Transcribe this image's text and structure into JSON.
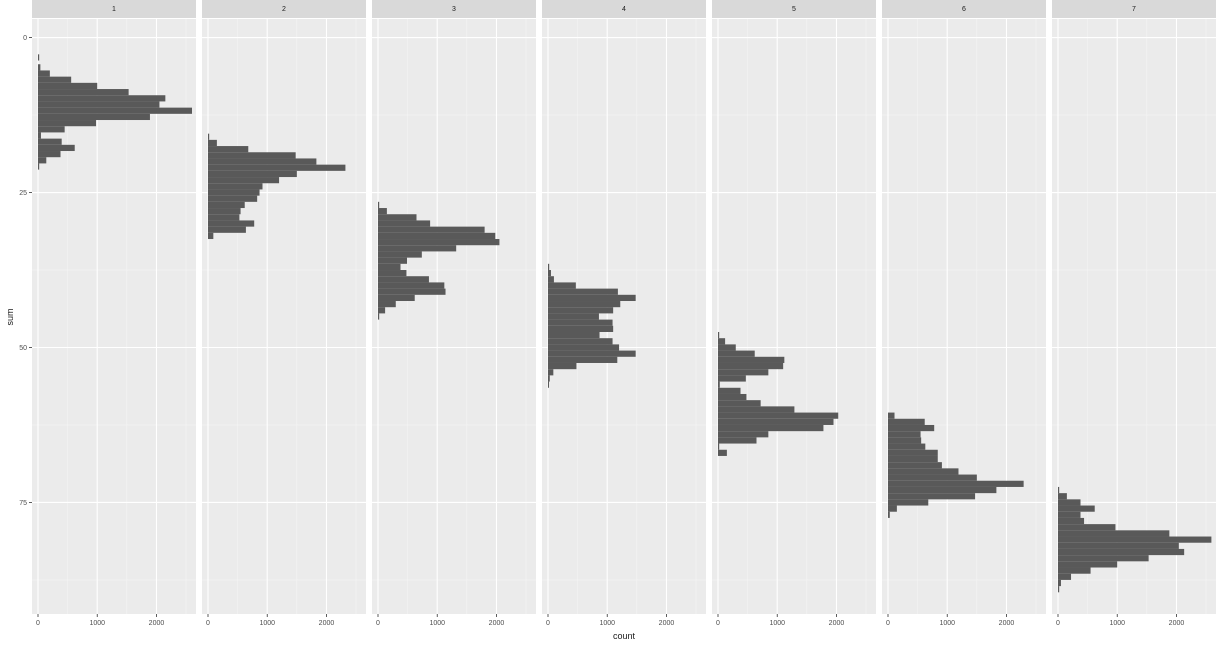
{
  "chart_data": {
    "type": "bar",
    "orientation": "horizontal",
    "facet_variable": "facet",
    "xlabel": "count",
    "ylabel": "sum",
    "xlim": [
      0,
      2600
    ],
    "ylim": [
      93,
      -3
    ],
    "y_reversed": true,
    "x_ticks": [
      0,
      1000,
      2000
    ],
    "y_ticks": [
      0,
      25,
      50,
      75
    ],
    "grid": true,
    "panel_background": "#ebebeb",
    "strip_background": "#d9d9d9",
    "bar_color": "#595959",
    "grid_color": "#ffffff",
    "text_color": "#4d4d4d",
    "facets": [
      {
        "label": "1",
        "bins": [
          {
            "y": 3.2,
            "count": 20
          },
          {
            "y": 4.8,
            "count": 40
          },
          {
            "y": 5.8,
            "count": 200
          },
          {
            "y": 6.8,
            "count": 560
          },
          {
            "y": 7.8,
            "count": 1000
          },
          {
            "y": 8.8,
            "count": 1530
          },
          {
            "y": 9.8,
            "count": 2150
          },
          {
            "y": 10.8,
            "count": 2050
          },
          {
            "y": 11.8,
            "count": 2600
          },
          {
            "y": 12.8,
            "count": 1890
          },
          {
            "y": 13.8,
            "count": 980
          },
          {
            "y": 14.8,
            "count": 450
          },
          {
            "y": 15.8,
            "count": 50
          },
          {
            "y": 16.8,
            "count": 400
          },
          {
            "y": 17.8,
            "count": 620
          },
          {
            "y": 18.8,
            "count": 380
          },
          {
            "y": 19.8,
            "count": 140
          },
          {
            "y": 20.8,
            "count": 20
          }
        ]
      },
      {
        "label": "2",
        "bins": [
          {
            "y": 16.0,
            "count": 20
          },
          {
            "y": 17.0,
            "count": 150
          },
          {
            "y": 18.0,
            "count": 680
          },
          {
            "y": 19.0,
            "count": 1480
          },
          {
            "y": 20.0,
            "count": 1830
          },
          {
            "y": 21.0,
            "count": 2320
          },
          {
            "y": 22.0,
            "count": 1500
          },
          {
            "y": 23.0,
            "count": 1200
          },
          {
            "y": 24.0,
            "count": 920
          },
          {
            "y": 25.0,
            "count": 870
          },
          {
            "y": 26.0,
            "count": 830
          },
          {
            "y": 27.0,
            "count": 620
          },
          {
            "y": 28.0,
            "count": 550
          },
          {
            "y": 29.0,
            "count": 530
          },
          {
            "y": 30.0,
            "count": 780
          },
          {
            "y": 31.0,
            "count": 640
          },
          {
            "y": 32.0,
            "count": 90
          }
        ]
      },
      {
        "label": "3",
        "bins": [
          {
            "y": 27.0,
            "count": 20
          },
          {
            "y": 28.0,
            "count": 150
          },
          {
            "y": 29.0,
            "count": 650
          },
          {
            "y": 30.0,
            "count": 880
          },
          {
            "y": 31.0,
            "count": 1800
          },
          {
            "y": 32.0,
            "count": 1980
          },
          {
            "y": 33.0,
            "count": 2050
          },
          {
            "y": 34.0,
            "count": 1320
          },
          {
            "y": 35.0,
            "count": 740
          },
          {
            "y": 36.0,
            "count": 490
          },
          {
            "y": 37.0,
            "count": 380
          },
          {
            "y": 38.0,
            "count": 480
          },
          {
            "y": 39.0,
            "count": 860
          },
          {
            "y": 40.0,
            "count": 1120
          },
          {
            "y": 41.0,
            "count": 1140
          },
          {
            "y": 42.0,
            "count": 620
          },
          {
            "y": 43.0,
            "count": 300
          },
          {
            "y": 44.0,
            "count": 120
          },
          {
            "y": 45.0,
            "count": 20
          }
        ]
      },
      {
        "label": "4",
        "bins": [
          {
            "y": 37.0,
            "count": 20
          },
          {
            "y": 38.0,
            "count": 50
          },
          {
            "y": 39.0,
            "count": 100
          },
          {
            "y": 40.0,
            "count": 470
          },
          {
            "y": 41.0,
            "count": 1180
          },
          {
            "y": 42.0,
            "count": 1480
          },
          {
            "y": 43.0,
            "count": 1220
          },
          {
            "y": 44.0,
            "count": 1100
          },
          {
            "y": 45.0,
            "count": 860
          },
          {
            "y": 46.0,
            "count": 1090
          },
          {
            "y": 47.0,
            "count": 1100
          },
          {
            "y": 48.0,
            "count": 870
          },
          {
            "y": 49.0,
            "count": 1090
          },
          {
            "y": 50.0,
            "count": 1200
          },
          {
            "y": 51.0,
            "count": 1480
          },
          {
            "y": 52.0,
            "count": 1170
          },
          {
            "y": 53.0,
            "count": 480
          },
          {
            "y": 54.0,
            "count": 90
          },
          {
            "y": 55.0,
            "count": 30
          },
          {
            "y": 56.0,
            "count": 10
          }
        ]
      },
      {
        "label": "5",
        "bins": [
          {
            "y": 48.0,
            "count": 20
          },
          {
            "y": 49.0,
            "count": 120
          },
          {
            "y": 50.0,
            "count": 300
          },
          {
            "y": 51.0,
            "count": 620
          },
          {
            "y": 52.0,
            "count": 1120
          },
          {
            "y": 53.0,
            "count": 1100
          },
          {
            "y": 54.0,
            "count": 850
          },
          {
            "y": 55.0,
            "count": 470
          },
          {
            "y": 56.0,
            "count": 30
          },
          {
            "y": 57.0,
            "count": 380
          },
          {
            "y": 58.0,
            "count": 480
          },
          {
            "y": 59.0,
            "count": 720
          },
          {
            "y": 60.0,
            "count": 1290
          },
          {
            "y": 61.0,
            "count": 2030
          },
          {
            "y": 62.0,
            "count": 1950
          },
          {
            "y": 63.0,
            "count": 1780
          },
          {
            "y": 64.0,
            "count": 850
          },
          {
            "y": 65.0,
            "count": 650
          },
          {
            "y": 66.0,
            "count": 20
          },
          {
            "y": 67.0,
            "count": 150
          }
        ]
      },
      {
        "label": "6",
        "bins": [
          {
            "y": 61.0,
            "count": 110
          },
          {
            "y": 62.0,
            "count": 620
          },
          {
            "y": 63.0,
            "count": 780
          },
          {
            "y": 64.0,
            "count": 550
          },
          {
            "y": 65.0,
            "count": 560
          },
          {
            "y": 66.0,
            "count": 630
          },
          {
            "y": 67.0,
            "count": 840
          },
          {
            "y": 68.0,
            "count": 840
          },
          {
            "y": 69.0,
            "count": 910
          },
          {
            "y": 70.0,
            "count": 1190
          },
          {
            "y": 71.0,
            "count": 1500
          },
          {
            "y": 72.0,
            "count": 2290
          },
          {
            "y": 73.0,
            "count": 1830
          },
          {
            "y": 74.0,
            "count": 1470
          },
          {
            "y": 75.0,
            "count": 680
          },
          {
            "y": 76.0,
            "count": 150
          },
          {
            "y": 77.0,
            "count": 30
          }
        ]
      },
      {
        "label": "7",
        "bins": [
          {
            "y": 73.0,
            "count": 20
          },
          {
            "y": 74.0,
            "count": 150
          },
          {
            "y": 75.0,
            "count": 380
          },
          {
            "y": 76.0,
            "count": 620
          },
          {
            "y": 77.0,
            "count": 380
          },
          {
            "y": 78.0,
            "count": 440
          },
          {
            "y": 79.0,
            "count": 970
          },
          {
            "y": 80.0,
            "count": 1880
          },
          {
            "y": 81.0,
            "count": 2590
          },
          {
            "y": 82.0,
            "count": 2040
          },
          {
            "y": 83.0,
            "count": 2130
          },
          {
            "y": 84.0,
            "count": 1530
          },
          {
            "y": 85.0,
            "count": 1000
          },
          {
            "y": 86.0,
            "count": 550
          },
          {
            "y": 87.0,
            "count": 220
          },
          {
            "y": 88.0,
            "count": 50
          },
          {
            "y": 89.0,
            "count": 20
          }
        ]
      }
    ]
  }
}
